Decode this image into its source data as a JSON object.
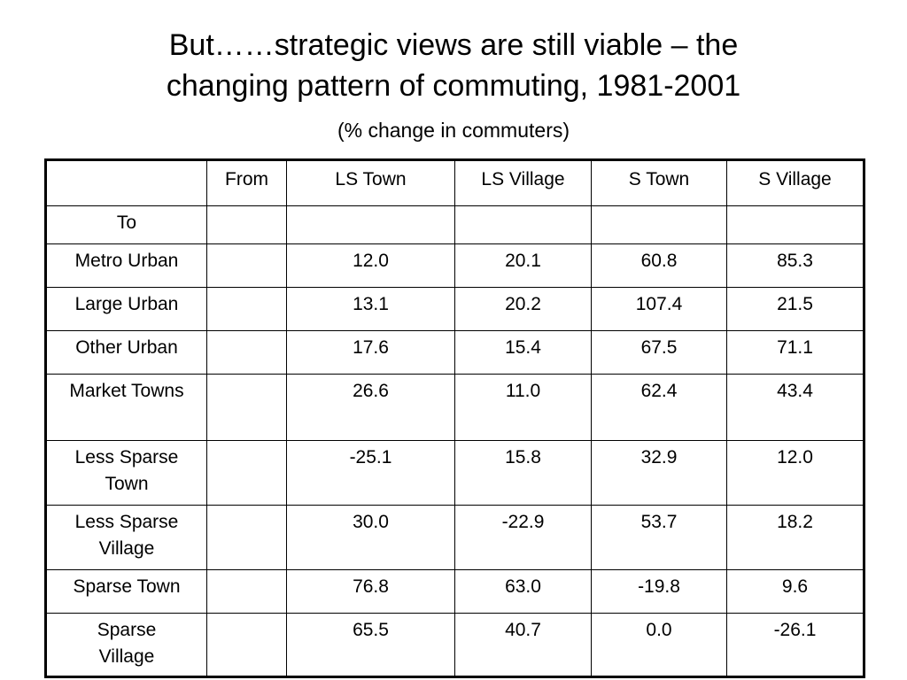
{
  "slide": {
    "title_line1": "But……strategic views are still viable – the",
    "title_line2": "changing pattern of commuting, 1981-2001",
    "subtitle": "(% change in commuters)"
  },
  "table": {
    "corner": "",
    "from_label": "From",
    "columns": [
      "LS Town",
      "LS Village",
      "S Town",
      "S Village"
    ],
    "to_label": "To",
    "rows": [
      {
        "label": "Metro Urban",
        "values": [
          "12.0",
          "20.1",
          "60.8",
          "85.3"
        ]
      },
      {
        "label": "Large Urban",
        "values": [
          "13.1",
          "20.2",
          "107.4",
          "21.5"
        ]
      },
      {
        "label": "Other Urban",
        "values": [
          "17.6",
          "15.4",
          "67.5",
          "71.1"
        ]
      },
      {
        "label": "Market Towns",
        "values": [
          "26.6",
          "11.0",
          "62.4",
          "43.4"
        ]
      },
      {
        "label_line1": "Less Sparse",
        "label_line2": "Town",
        "values": [
          "-25.1",
          "15.8",
          "32.9",
          "12.0"
        ]
      },
      {
        "label_line1": "Less Sparse",
        "label_line2": "Village",
        "values": [
          "30.0",
          "-22.9",
          "53.7",
          "18.2"
        ]
      },
      {
        "label": "Sparse Town",
        "values": [
          "76.8",
          "63.0",
          "-19.8",
          "9.6"
        ]
      },
      {
        "label_line1": "Sparse",
        "label_line2": "Village",
        "values": [
          "65.5",
          "40.7",
          "0.0",
          "-26.1"
        ]
      }
    ]
  }
}
